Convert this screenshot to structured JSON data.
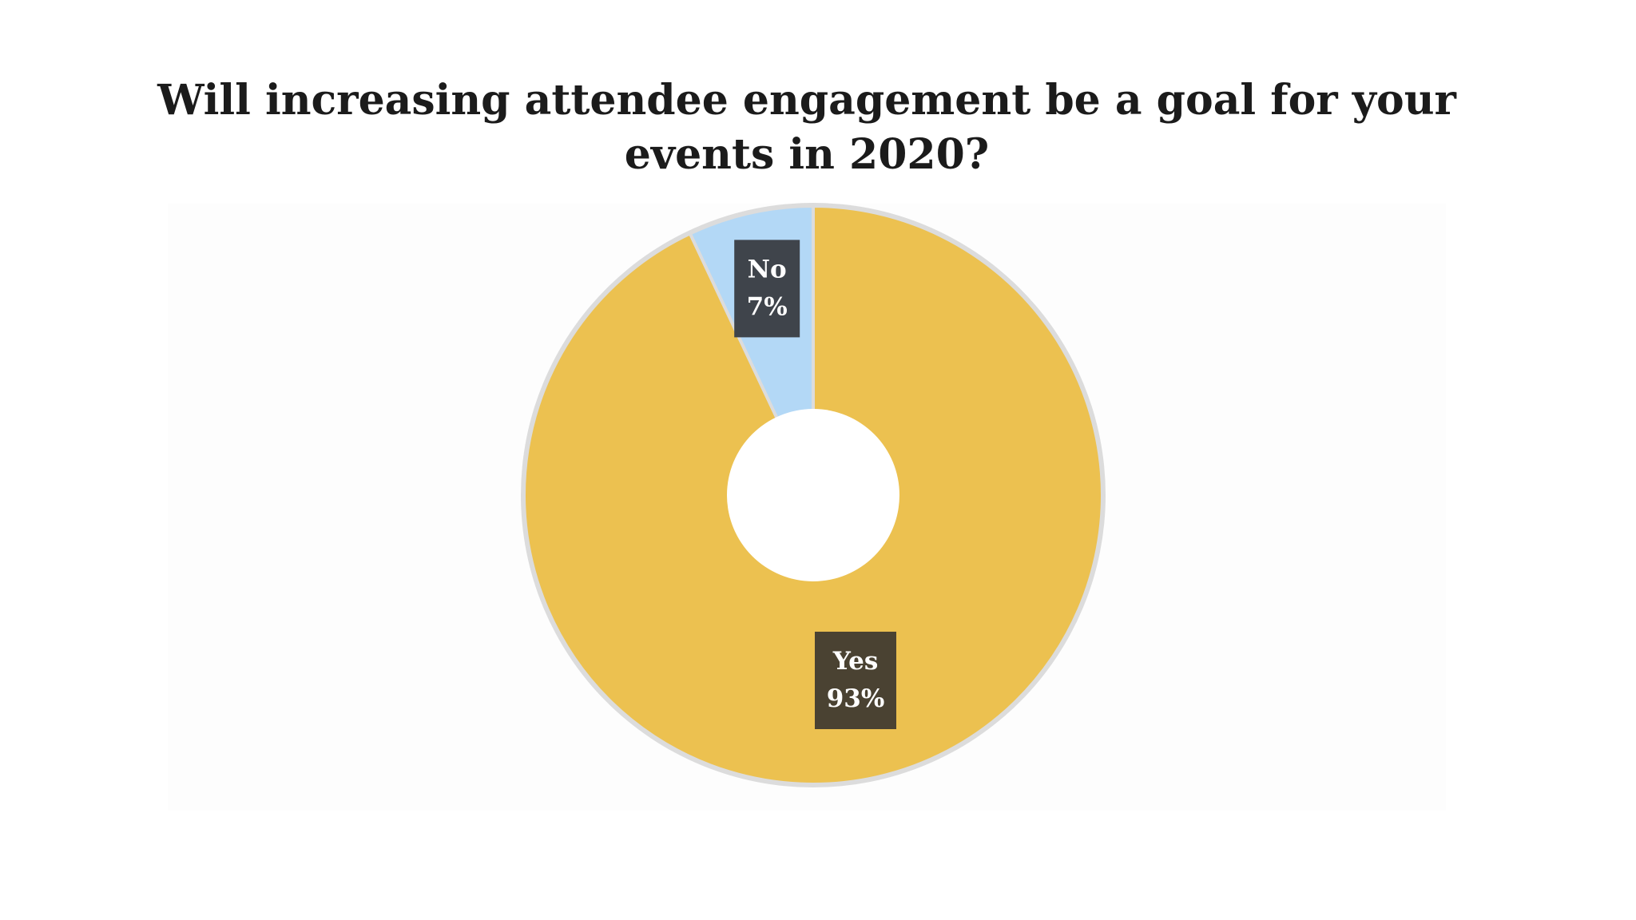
{
  "chart_data": {
    "type": "pie",
    "title": "Will increasing attendee engagement be a goal for your events in 2020?",
    "donut": true,
    "slices": [
      {
        "label": "Yes",
        "value": 93,
        "value_label": "93%",
        "color": "#ecc150",
        "label_bg": "#4a4232"
      },
      {
        "label": "No",
        "value": 7,
        "value_label": "7%",
        "color": "#b3d8f6",
        "label_bg": "#3f444b"
      }
    ],
    "ring_color": "#dcdcdc",
    "legend": "none"
  }
}
